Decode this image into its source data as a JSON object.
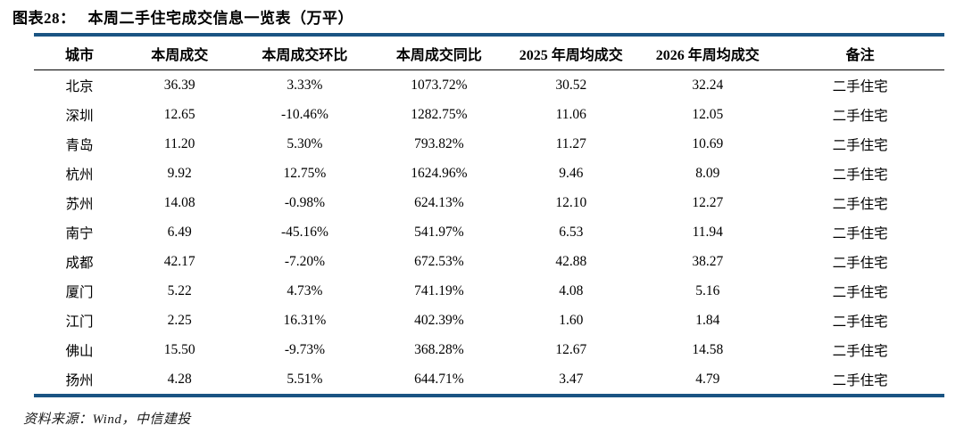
{
  "figure": {
    "label": "图表28：",
    "title": "本周二手住宅成交信息一览表（万平）"
  },
  "table": {
    "columns": [
      "城市",
      "本周成交",
      "本周成交环比",
      "本周成交同比",
      "2025 年周均成交",
      "2026 年周均成交",
      "备注"
    ],
    "col_widths_pct": [
      10,
      12,
      15.5,
      14,
      15,
      15,
      18.5
    ],
    "rows": [
      [
        "北京",
        "36.39",
        "3.33%",
        "1073.72%",
        "30.52",
        "32.24",
        "二手住宅"
      ],
      [
        "深圳",
        "12.65",
        "-10.46%",
        "1282.75%",
        "11.06",
        "12.05",
        "二手住宅"
      ],
      [
        "青岛",
        "11.20",
        "5.30%",
        "793.82%",
        "11.27",
        "10.69",
        "二手住宅"
      ],
      [
        "杭州",
        "9.92",
        "12.75%",
        "1624.96%",
        "9.46",
        "8.09",
        "二手住宅"
      ],
      [
        "苏州",
        "14.08",
        "-0.98%",
        "624.13%",
        "12.10",
        "12.27",
        "二手住宅"
      ],
      [
        "南宁",
        "6.49",
        "-45.16%",
        "541.97%",
        "6.53",
        "11.94",
        "二手住宅"
      ],
      [
        "成都",
        "42.17",
        "-7.20%",
        "672.53%",
        "42.88",
        "38.27",
        "二手住宅"
      ],
      [
        "厦门",
        "5.22",
        "4.73%",
        "741.19%",
        "4.08",
        "5.16",
        "二手住宅"
      ],
      [
        "江门",
        "2.25",
        "16.31%",
        "402.39%",
        "1.60",
        "1.84",
        "二手住宅"
      ],
      [
        "佛山",
        "15.50",
        "-9.73%",
        "368.28%",
        "12.67",
        "14.58",
        "二手住宅"
      ],
      [
        "扬州",
        "4.28",
        "5.51%",
        "644.71%",
        "3.47",
        "4.79",
        "二手住宅"
      ]
    ]
  },
  "footer": {
    "source": "资料来源：Wind，中信建投"
  },
  "colors": {
    "accent_blue": "#1A5483",
    "text": "#000000"
  },
  "chart_data": {
    "type": "table",
    "title": "图表28： 本周二手住宅成交信息一览表（万平）",
    "columns": [
      "城市",
      "本周成交",
      "本周成交环比",
      "本周成交同比",
      "2025 年周均成交",
      "2026 年周均成交",
      "备注"
    ],
    "rows": [
      {
        "城市": "北京",
        "本周成交": 36.39,
        "本周成交环比": "3.33%",
        "本周成交同比": "1073.72%",
        "2025年周均成交": 30.52,
        "2026年周均成交": 32.24,
        "备注": "二手住宅"
      },
      {
        "城市": "深圳",
        "本周成交": 12.65,
        "本周成交环比": "-10.46%",
        "本周成交同比": "1282.75%",
        "2025年周均成交": 11.06,
        "2026年周均成交": 12.05,
        "备注": "二手住宅"
      },
      {
        "城市": "青岛",
        "本周成交": 11.2,
        "本周成交环比": "5.30%",
        "本周成交同比": "793.82%",
        "2025年周均成交": 11.27,
        "2026年周均成交": 10.69,
        "备注": "二手住宅"
      },
      {
        "城市": "杭州",
        "本周成交": 9.92,
        "本周成交环比": "12.75%",
        "本周成交同比": "1624.96%",
        "2025年周均成交": 9.46,
        "2026年周均成交": 8.09,
        "备注": "二手住宅"
      },
      {
        "城市": "苏州",
        "本周成交": 14.08,
        "本周成交环比": "-0.98%",
        "本周成交同比": "624.13%",
        "2025年周均成交": 12.1,
        "2026年周均成交": 12.27,
        "备注": "二手住宅"
      },
      {
        "城市": "南宁",
        "本周成交": 6.49,
        "本周成交环比": "-45.16%",
        "本周成交同比": "541.97%",
        "2025年周均成交": 6.53,
        "2026年周均成交": 11.94,
        "备注": "二手住宅"
      },
      {
        "城市": "成都",
        "本周成交": 42.17,
        "本周成交环比": "-7.20%",
        "本周成交同比": "672.53%",
        "2025年周均成交": 42.88,
        "2026年周均成交": 38.27,
        "备注": "二手住宅"
      },
      {
        "城市": "厦门",
        "本周成交": 5.22,
        "本周成交环比": "4.73%",
        "本周成交同比": "741.19%",
        "2025年周均成交": 4.08,
        "2026年周均成交": 5.16,
        "备注": "二手住宅"
      },
      {
        "城市": "江门",
        "本周成交": 2.25,
        "本周成交环比": "16.31%",
        "本周成交同比": "402.39%",
        "2025年周均成交": 1.6,
        "2026年周均成交": 1.84,
        "备注": "二手住宅"
      },
      {
        "城市": "佛山",
        "本周成交": 15.5,
        "本周成交环比": "-9.73%",
        "本周成交同比": "368.28%",
        "2025年周均成交": 12.67,
        "2026年周均成交": 14.58,
        "备注": "二手住宅"
      },
      {
        "城市": "扬州",
        "本周成交": 4.28,
        "本周成交环比": "5.51%",
        "本周成交同比": "644.71%",
        "2025年周均成交": 3.47,
        "2026年周均成交": 4.79,
        "备注": "二手住宅"
      }
    ],
    "source_note": "资料来源：Wind，中信建投"
  }
}
